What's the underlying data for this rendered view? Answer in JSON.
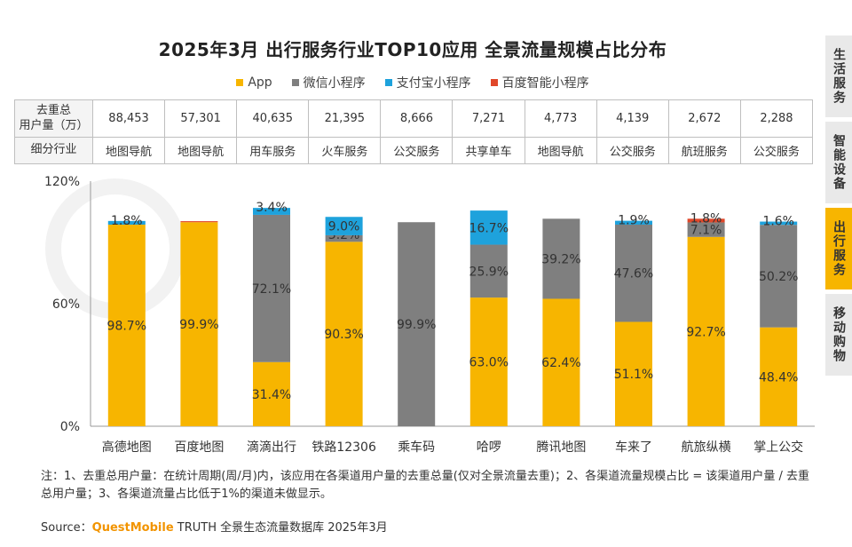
{
  "title": "2025年3月 出行服务行业TOP10应用 全景流量规模占比分布",
  "legend": [
    {
      "label": "App",
      "color": "#f7b500"
    },
    {
      "label": "微信小程序",
      "color": "#7f7f7f"
    },
    {
      "label": "支付宝小程序",
      "color": "#1ea2dc"
    },
    {
      "label": "百度智能小程序",
      "color": "#e0472a"
    }
  ],
  "table": {
    "row1_label": "去重总用户量（万）",
    "row1_label_a": "去重总",
    "row1_label_b": "用户量（万）",
    "row2_label": "细分行业",
    "users": [
      "88,453",
      "57,301",
      "40,635",
      "21,395",
      "8,666",
      "7,271",
      "4,773",
      "4,139",
      "2,672",
      "2,288"
    ],
    "industries": [
      "地图导航",
      "地图导航",
      "用车服务",
      "火车服务",
      "公交服务",
      "共享单车",
      "地图导航",
      "公交服务",
      "航班服务",
      "公交服务"
    ]
  },
  "chart_data": {
    "type": "bar",
    "stacked": true,
    "categories": [
      "高德地图",
      "百度地图",
      "滴滴出行",
      "铁路12306",
      "乘车码",
      "哈啰",
      "腾讯地图",
      "车来了",
      "航旅纵横",
      "掌上公交"
    ],
    "series": [
      {
        "name": "App",
        "color": "#f7b500",
        "values": [
          98.7,
          99.9,
          31.4,
          90.3,
          0,
          63.0,
          62.4,
          51.1,
          92.7,
          48.4
        ]
      },
      {
        "name": "微信小程序",
        "color": "#7f7f7f",
        "values": [
          0,
          0,
          72.1,
          3.2,
          99.9,
          25.9,
          39.2,
          47.6,
          7.1,
          50.2
        ]
      },
      {
        "name": "支付宝小程序",
        "color": "#1ea2dc",
        "values": [
          1.8,
          0,
          3.4,
          9.0,
          0,
          16.7,
          0,
          1.9,
          0,
          1.6
        ]
      },
      {
        "name": "百度智能小程序",
        "color": "#e0472a",
        "values": [
          0,
          0.5,
          0,
          0,
          0,
          0,
          0,
          0,
          1.8,
          0
        ]
      }
    ],
    "labels": [
      [
        "98.7%",
        "",
        "1.8%",
        ""
      ],
      [
        "99.9%",
        "",
        "",
        ""
      ],
      [
        "31.4%",
        "72.1%",
        "3.4%",
        ""
      ],
      [
        "90.3%",
        "3.2%",
        "9.0%",
        ""
      ],
      [
        "",
        "99.9%",
        "",
        ""
      ],
      [
        "63.0%",
        "25.9%",
        "16.7%",
        ""
      ],
      [
        "62.4%",
        "39.2%",
        "",
        ""
      ],
      [
        "51.1%",
        "47.6%",
        "1.9%",
        ""
      ],
      [
        "92.7%",
        "7.1%",
        "",
        "1.8%"
      ],
      [
        "48.4%",
        "50.2%",
        "1.6%",
        ""
      ]
    ],
    "yticks": [
      "0%",
      "60%",
      "120%"
    ],
    "ylim": [
      0,
      120
    ]
  },
  "sidebar": [
    "生活服务",
    "智能设备",
    "出行服务",
    "移动购物"
  ],
  "sidebar_active": 2,
  "note": "注：1、去重总用户量：在统计周期(周/月)内，该应用在各渠道用户量的去重总量(仅对全景流量去重)；2、各渠道流量规模占比 = 该渠道用户量 / 去重总用户量；3、各渠道流量占比低于1%的渠道未做显示。",
  "source": {
    "prefix": "Source：",
    "brand": "QuestMobile",
    "suffix": " TRUTH 全景生态流量数据库 2025年3月"
  }
}
